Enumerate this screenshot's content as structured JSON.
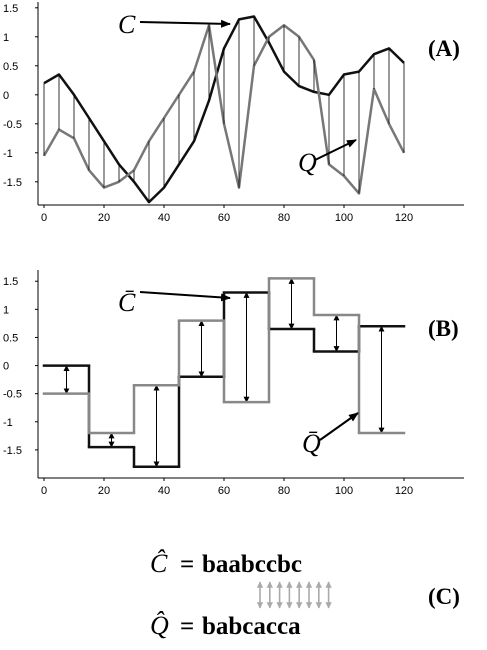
{
  "chart_data": [
    {
      "type": "line",
      "panel_label": "(A)",
      "x": [
        0,
        5,
        10,
        15,
        20,
        25,
        30,
        35,
        40,
        45,
        50,
        55,
        60,
        65,
        70,
        75,
        80,
        85,
        90,
        95,
        100,
        105,
        110,
        115,
        120
      ],
      "series": [
        {
          "name": "C",
          "color": "#111111",
          "values": [
            0.2,
            0.35,
            0.0,
            -0.4,
            -0.8,
            -1.2,
            -1.5,
            -1.85,
            -1.6,
            -1.2,
            -0.8,
            -0.1,
            0.8,
            1.3,
            1.35,
            0.9,
            0.4,
            0.15,
            0.05,
            0.0,
            0.35,
            0.4,
            0.7,
            0.8,
            0.55
          ]
        },
        {
          "name": "Q",
          "color": "#777777",
          "values": [
            -1.05,
            -0.6,
            -0.75,
            -1.3,
            -1.6,
            -1.5,
            -1.3,
            -0.8,
            -0.4,
            0.0,
            0.4,
            1.2,
            -0.5,
            -1.6,
            0.5,
            1.0,
            1.2,
            1.0,
            0.6,
            -1.2,
            -1.4,
            -1.7,
            0.1,
            -0.5,
            -1.0
          ]
        }
      ],
      "xlim": [
        -2,
        140
      ],
      "xticks": [
        0,
        20,
        40,
        60,
        80,
        100,
        120
      ],
      "ylim": [
        -1.9,
        1.6
      ],
      "yticks": [
        -1.5,
        -1,
        -0.5,
        0,
        0.5,
        1,
        1.5
      ]
    },
    {
      "type": "step",
      "panel_label": "(B)",
      "x_edges": [
        0,
        15,
        30,
        45,
        60,
        75,
        90,
        105,
        120
      ],
      "series": [
        {
          "name": "C̄",
          "color": "#111111",
          "values": [
            0,
            -1.45,
            -1.8,
            -0.2,
            1.3,
            0.65,
            0.25,
            0.7
          ]
        },
        {
          "name": "Q̄",
          "color": "#888888",
          "values": [
            -0.5,
            -1.2,
            -0.35,
            0.8,
            -0.65,
            1.55,
            0.9,
            -1.2
          ]
        }
      ],
      "xlim": [
        -2,
        140
      ],
      "xticks": [
        0,
        20,
        40,
        60,
        80,
        100,
        120
      ],
      "ylim": [
        -2,
        1.7
      ],
      "yticks": [
        -1.5,
        -1,
        -0.5,
        0,
        0.5,
        1,
        1.5
      ]
    }
  ],
  "words": {
    "panel_label": "(C)",
    "equals": "=",
    "c_symbol": "Ĉ",
    "c_word": "baabccbc",
    "q_symbol": "Q̂",
    "q_word": "babcacca"
  }
}
